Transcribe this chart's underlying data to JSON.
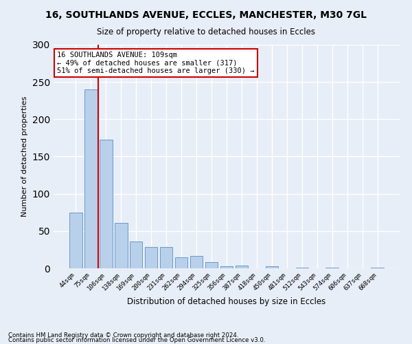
{
  "title": "16, SOUTHLANDS AVENUE, ECCLES, MANCHESTER, M30 7GL",
  "subtitle": "Size of property relative to detached houses in Eccles",
  "xlabel": "Distribution of detached houses by size in Eccles",
  "ylabel": "Number of detached properties",
  "footer_line1": "Contains HM Land Registry data © Crown copyright and database right 2024.",
  "footer_line2": "Contains public sector information licensed under the Open Government Licence v3.0.",
  "bin_labels": [
    "44sqm",
    "75sqm",
    "106sqm",
    "138sqm",
    "169sqm",
    "200sqm",
    "231sqm",
    "262sqm",
    "294sqm",
    "325sqm",
    "356sqm",
    "387sqm",
    "418sqm",
    "450sqm",
    "481sqm",
    "512sqm",
    "543sqm",
    "574sqm",
    "606sqm",
    "637sqm",
    "668sqm"
  ],
  "bar_values": [
    75,
    240,
    173,
    61,
    36,
    29,
    29,
    15,
    17,
    8,
    3,
    4,
    0,
    3,
    0,
    1,
    0,
    1,
    0,
    0,
    1
  ],
  "bar_color": "#b8d0ea",
  "bar_edge_color": "#6699cc",
  "vline_color": "#cc0000",
  "annotation_title": "16 SOUTHLANDS AVENUE: 109sqm",
  "annotation_line1": "← 49% of detached houses are smaller (317)",
  "annotation_line2": "51% of semi-detached houses are larger (330) →",
  "annotation_box_color": "#ffffff",
  "annotation_box_edge_color": "#cc0000",
  "ylim": [
    0,
    300
  ],
  "yticks": [
    0,
    50,
    100,
    150,
    200,
    250,
    300
  ],
  "background_color": "#e8eef7",
  "grid_color": "#ffffff"
}
